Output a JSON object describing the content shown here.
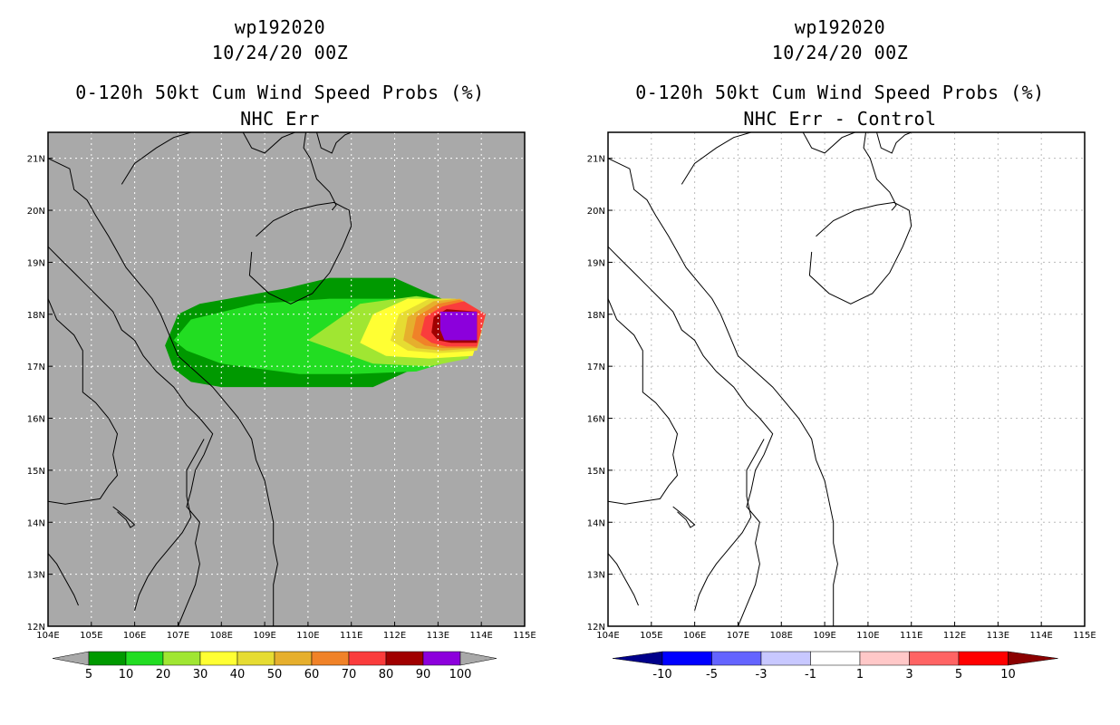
{
  "panels": [
    {
      "storm_id": "wp192020",
      "datetime": "10/24/20 00Z",
      "product": "0-120h 50kt Cum Wind Speed Probs (%)",
      "subtitle": "NHC Err",
      "colorbar": {
        "labels": [
          "5",
          "10",
          "20",
          "30",
          "40",
          "50",
          "60",
          "70",
          "80",
          "90",
          "100"
        ],
        "colors": [
          "#009900",
          "#22dd22",
          "#a0e632",
          "#ffff33",
          "#e6dc32",
          "#e6af2d",
          "#f08228",
          "#fa3c3c",
          "#a00000",
          "#8c00dc"
        ],
        "end_color": "#a9a9a9"
      }
    },
    {
      "storm_id": "wp192020",
      "datetime": "10/24/20 00Z",
      "product": "0-120h 50kt Cum Wind Speed Probs (%)",
      "subtitle": "NHC Err - Control",
      "colorbar": {
        "labels": [
          "-10",
          "-5",
          "-3",
          "-1",
          "1",
          "3",
          "5",
          "10"
        ],
        "colors": [
          "#0000ff",
          "#6464ff",
          "#c8c8ff",
          "#ffffff",
          "#ffc8c8",
          "#ff6464",
          "#ff0000"
        ],
        "left_end_color": "#00008b",
        "right_end_color": "#8b0000"
      }
    }
  ],
  "map": {
    "lon_labels": [
      "104E",
      "105E",
      "106E",
      "107E",
      "108E",
      "109E",
      "110E",
      "111E",
      "112E",
      "113E",
      "114E",
      "115E"
    ],
    "lat_labels": [
      "12N",
      "13N",
      "14N",
      "15N",
      "16N",
      "17N",
      "18N",
      "19N",
      "20N",
      "21N"
    ],
    "lon_range": [
      104,
      115
    ],
    "lat_range": [
      12,
      21.5
    ],
    "land_color": "#a9a9a9",
    "plain_color": "#ffffff"
  },
  "probability_contours": [
    {
      "level": 5,
      "color": "#009900",
      "polygon": [
        [
          106.7,
          17.4
        ],
        [
          107,
          18
        ],
        [
          107.5,
          18.2
        ],
        [
          109.5,
          18.5
        ],
        [
          110.5,
          18.7
        ],
        [
          111.5,
          18.7
        ],
        [
          112,
          18.7
        ],
        [
          112.8,
          18.4
        ],
        [
          113.8,
          18.05
        ],
        [
          113.5,
          17.3
        ],
        [
          112.3,
          16.9
        ],
        [
          111.5,
          16.6
        ],
        [
          108,
          16.6
        ],
        [
          107.3,
          16.7
        ],
        [
          106.9,
          16.95
        ]
      ]
    },
    {
      "level": 10,
      "color": "#22dd22",
      "polygon": [
        [
          106.9,
          17.5
        ],
        [
          107.3,
          17.9
        ],
        [
          108.8,
          18.2
        ],
        [
          110.5,
          18.3
        ],
        [
          111.4,
          18.3
        ],
        [
          112.2,
          18.3
        ],
        [
          113.2,
          18.15
        ],
        [
          113.9,
          18.05
        ],
        [
          113.7,
          17.2
        ],
        [
          112.5,
          16.9
        ],
        [
          111,
          16.85
        ],
        [
          109.8,
          16.85
        ],
        [
          108,
          17.05
        ],
        [
          107.2,
          17.3
        ]
      ]
    },
    {
      "level": 20,
      "color": "#a0e632",
      "polygon": [
        [
          110,
          17.5
        ],
        [
          111.2,
          18.2
        ],
        [
          112.5,
          18.35
        ],
        [
          113.3,
          18.25
        ],
        [
          114,
          18.05
        ],
        [
          113.7,
          17.15
        ],
        [
          112.8,
          17
        ],
        [
          111.5,
          17.05
        ]
      ]
    },
    {
      "level": 30,
      "color": "#ffff33",
      "polygon": [
        [
          111.2,
          17.45
        ],
        [
          111.5,
          18
        ],
        [
          112.3,
          18.3
        ],
        [
          113.3,
          18.3
        ],
        [
          114.1,
          18
        ],
        [
          113.8,
          17.2
        ],
        [
          112.8,
          17.15
        ],
        [
          111.8,
          17.2
        ]
      ]
    },
    {
      "level": 40,
      "color": "#e6dc32",
      "polygon": [
        [
          111.9,
          17.5
        ],
        [
          112.1,
          18
        ],
        [
          112.8,
          18.3
        ],
        [
          113.4,
          18.3
        ],
        [
          114.1,
          18
        ],
        [
          113.9,
          17.3
        ],
        [
          113,
          17.25
        ],
        [
          112.3,
          17.3
        ]
      ]
    },
    {
      "level": 50,
      "color": "#e6af2d",
      "polygon": [
        [
          112.2,
          17.5
        ],
        [
          112.3,
          17.95
        ],
        [
          112.9,
          18.25
        ],
        [
          113.5,
          18.3
        ],
        [
          114.1,
          18
        ],
        [
          113.9,
          17.35
        ],
        [
          113.1,
          17.3
        ],
        [
          112.5,
          17.35
        ]
      ]
    },
    {
      "level": 60,
      "color": "#f08228",
      "polygon": [
        [
          112.4,
          17.55
        ],
        [
          112.5,
          17.95
        ],
        [
          113,
          18.2
        ],
        [
          113.5,
          18.28
        ],
        [
          114.1,
          18
        ],
        [
          113.9,
          17.35
        ],
        [
          113.1,
          17.35
        ],
        [
          112.7,
          17.4
        ]
      ]
    },
    {
      "level": 70,
      "color": "#fa3c3c",
      "polygon": [
        [
          112.6,
          17.6
        ],
        [
          112.7,
          17.95
        ],
        [
          113.1,
          18.15
        ],
        [
          113.6,
          18.25
        ],
        [
          114.1,
          18
        ],
        [
          113.9,
          17.38
        ],
        [
          113.2,
          17.38
        ],
        [
          112.85,
          17.45
        ]
      ]
    },
    {
      "level": 80,
      "color": "#a00000",
      "polygon": [
        [
          112.85,
          17.65
        ],
        [
          112.9,
          17.95
        ],
        [
          113.2,
          18.1
        ],
        [
          113.9,
          18.05
        ],
        [
          113.9,
          17.45
        ],
        [
          113.3,
          17.45
        ],
        [
          113,
          17.5
        ]
      ]
    },
    {
      "level": 90,
      "color": "#8c00dc",
      "polygon": [
        [
          113.05,
          17.7
        ],
        [
          113.05,
          18.05
        ],
        [
          113.9,
          18.05
        ],
        [
          113.9,
          17.5
        ],
        [
          113.15,
          17.5
        ]
      ]
    }
  ],
  "coastlines": [
    [
      [
        104,
        19.3
      ],
      [
        104.3,
        19.05
      ],
      [
        104.6,
        18.8
      ],
      [
        104.9,
        18.55
      ],
      [
        105.2,
        18.3
      ],
      [
        105.5,
        18.05
      ],
      [
        105.7,
        17.7
      ],
      [
        106,
        17.5
      ],
      [
        106.2,
        17.2
      ],
      [
        106.5,
        16.9
      ],
      [
        106.9,
        16.6
      ],
      [
        107.2,
        16.25
      ],
      [
        107.5,
        16
      ],
      [
        107.8,
        15.7
      ],
      [
        107.6,
        15.3
      ],
      [
        107.4,
        15
      ],
      [
        107.3,
        14.6
      ],
      [
        107.2,
        14.3
      ],
      [
        107.5,
        14
      ],
      [
        107.4,
        13.6
      ],
      [
        107.5,
        13.2
      ],
      [
        107.4,
        12.8
      ],
      [
        107.2,
        12.4
      ],
      [
        107,
        12
      ]
    ],
    [
      [
        104,
        18.3
      ],
      [
        104.2,
        17.9
      ],
      [
        104.6,
        17.6
      ],
      [
        104.8,
        17.3
      ],
      [
        104.8,
        16.9
      ],
      [
        104.8,
        16.5
      ],
      [
        105.1,
        16.3
      ],
      [
        105.4,
        16
      ],
      [
        105.6,
        15.7
      ],
      [
        105.5,
        15.3
      ],
      [
        105.6,
        14.9
      ],
      [
        105.4,
        14.7
      ],
      [
        105.2,
        14.45
      ],
      [
        104.8,
        14.4
      ],
      [
        104.4,
        14.35
      ],
      [
        104,
        14.4
      ]
    ],
    [
      [
        104,
        13.4
      ],
      [
        104.2,
        13.2
      ],
      [
        104.4,
        12.9
      ],
      [
        104.6,
        12.6
      ],
      [
        104.7,
        12.4
      ]
    ],
    [
      [
        105.5,
        14.3
      ],
      [
        105.8,
        14.1
      ],
      [
        106,
        13.95
      ],
      [
        105.9,
        13.9
      ],
      [
        105.8,
        14.05
      ],
      [
        105.6,
        14.2
      ]
    ],
    [
      [
        106,
        12.3
      ],
      [
        106.1,
        12.6
      ],
      [
        106.3,
        12.95
      ],
      [
        106.5,
        13.2
      ],
      [
        106.8,
        13.5
      ],
      [
        107.1,
        13.8
      ],
      [
        107.3,
        14.1
      ],
      [
        107.2,
        14.5
      ],
      [
        107.2,
        15
      ],
      [
        107.4,
        15.3
      ],
      [
        107.6,
        15.6
      ]
    ],
    [
      [
        104,
        21
      ],
      [
        104.5,
        20.8
      ],
      [
        104.6,
        20.4
      ],
      [
        104.9,
        20.2
      ],
      [
        105.1,
        19.9
      ],
      [
        105.4,
        19.5
      ],
      [
        105.6,
        19.2
      ],
      [
        105.8,
        18.9
      ],
      [
        106.1,
        18.6
      ],
      [
        106.4,
        18.3
      ],
      [
        106.6,
        18
      ],
      [
        106.8,
        17.6
      ],
      [
        107,
        17.2
      ],
      [
        107.4,
        16.9
      ],
      [
        107.8,
        16.6
      ],
      [
        108.1,
        16.3
      ],
      [
        108.4,
        16
      ],
      [
        108.7,
        15.6
      ],
      [
        108.8,
        15.2
      ],
      [
        109,
        14.8
      ],
      [
        109.1,
        14.4
      ],
      [
        109.2,
        14
      ],
      [
        109.2,
        13.6
      ],
      [
        109.3,
        13.2
      ],
      [
        109.2,
        12.8
      ],
      [
        109.2,
        12.4
      ],
      [
        109.2,
        12
      ]
    ],
    [
      [
        105.7,
        20.5
      ],
      [
        106,
        20.9
      ],
      [
        106.5,
        21.2
      ],
      [
        106.9,
        21.4
      ],
      [
        107.3,
        21.5
      ],
      [
        107.8,
        21.5
      ]
    ],
    [
      [
        108.5,
        21.5
      ],
      [
        108.7,
        21.2
      ],
      [
        109,
        21.1
      ],
      [
        109.4,
        21.4
      ],
      [
        109.7,
        21.5
      ]
    ],
    [
      [
        109.95,
        21.5
      ],
      [
        109.9,
        21.2
      ],
      [
        110.05,
        21.0
      ],
      [
        110.2,
        20.6
      ],
      [
        110.5,
        20.35
      ],
      [
        110.65,
        20.1
      ],
      [
        110.55,
        20.0
      ]
    ],
    [
      [
        110.2,
        21.5
      ],
      [
        110.3,
        21.2
      ],
      [
        110.55,
        21.1
      ],
      [
        110.65,
        21.3
      ],
      [
        110.85,
        21.45
      ],
      [
        111,
        21.5
      ]
    ],
    [
      [
        108.7,
        19.2
      ],
      [
        108.65,
        18.75
      ],
      [
        109.1,
        18.4
      ],
      [
        109.6,
        18.2
      ],
      [
        110.1,
        18.4
      ],
      [
        110.5,
        18.8
      ],
      [
        110.8,
        19.3
      ],
      [
        111,
        19.7
      ],
      [
        110.95,
        20.0
      ],
      [
        110.6,
        20.15
      ],
      [
        110.2,
        20.1
      ],
      [
        109.7,
        20.0
      ],
      [
        109.2,
        19.8
      ],
      [
        108.8,
        19.5
      ]
    ]
  ]
}
